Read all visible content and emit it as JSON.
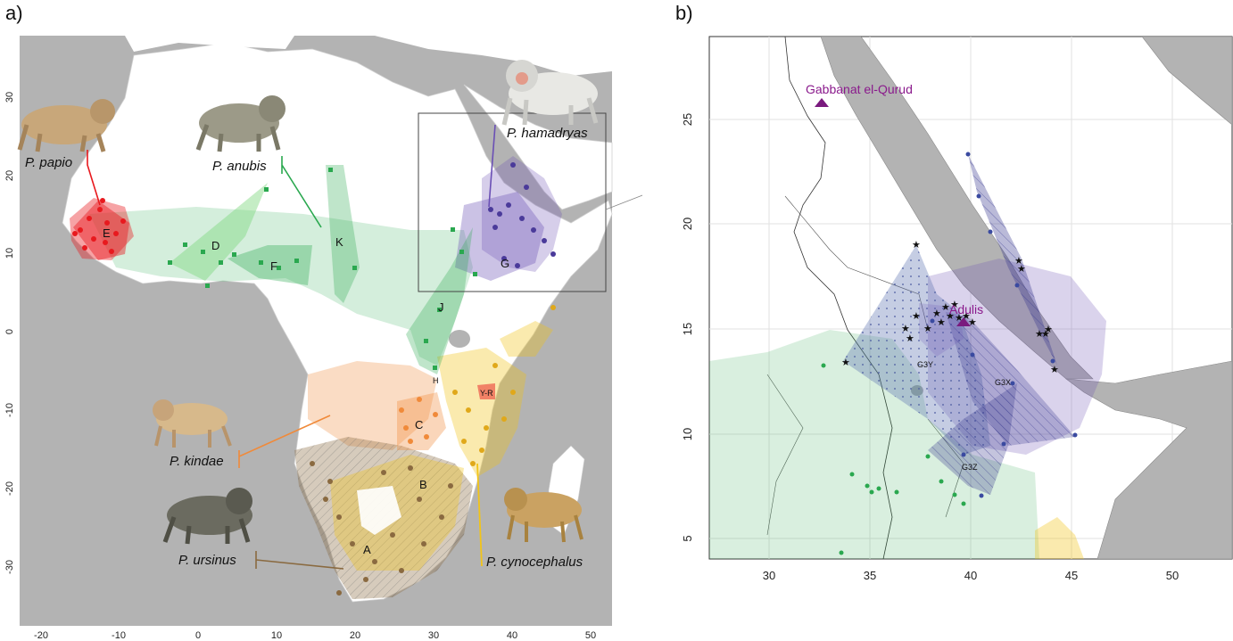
{
  "panel_a": {
    "letter": "a)",
    "x_ticks": [
      "-20",
      "-10",
      "0",
      "10",
      "20",
      "30",
      "40",
      "50"
    ],
    "y_ticks": [
      "30",
      "20",
      "10",
      "0",
      "-10",
      "-20",
      "-30"
    ],
    "species": {
      "papio": "P. papio",
      "anubis": "P. anubis",
      "hamadryas": "P. hamadryas",
      "kindae": "P. kindae",
      "ursinus": "P. ursinus",
      "cynocephalus": "P. cynocephalus"
    },
    "clusters": {
      "A": "A",
      "B": "B",
      "C": "C",
      "D": "D",
      "E": "E",
      "F": "F",
      "G": "G",
      "H": "H",
      "J": "J",
      "K": "K",
      "YR": "Y-R"
    },
    "colors": {
      "papio": "#e8191e",
      "anubis": "#2aa84f",
      "hamadryas": "#6a4fb5",
      "kindae": "#f08a3a",
      "ursinus": "#8a6a40",
      "cynocephalus": "#f2c418",
      "ocean": "#b4b4b4",
      "land": "#ffffff"
    }
  },
  "panel_b": {
    "letter": "b)",
    "x_ticks": [
      "30",
      "35",
      "40",
      "45",
      "50"
    ],
    "y_ticks": [
      "25",
      "20",
      "15",
      "10",
      "5"
    ],
    "sites": {
      "gabbanat": "Gabbanat el-Qurud",
      "adulis": "Adulis"
    },
    "clusters": {
      "G3Y": "G3Y",
      "G3X": "G3X",
      "G3Z": "G3Z"
    }
  }
}
